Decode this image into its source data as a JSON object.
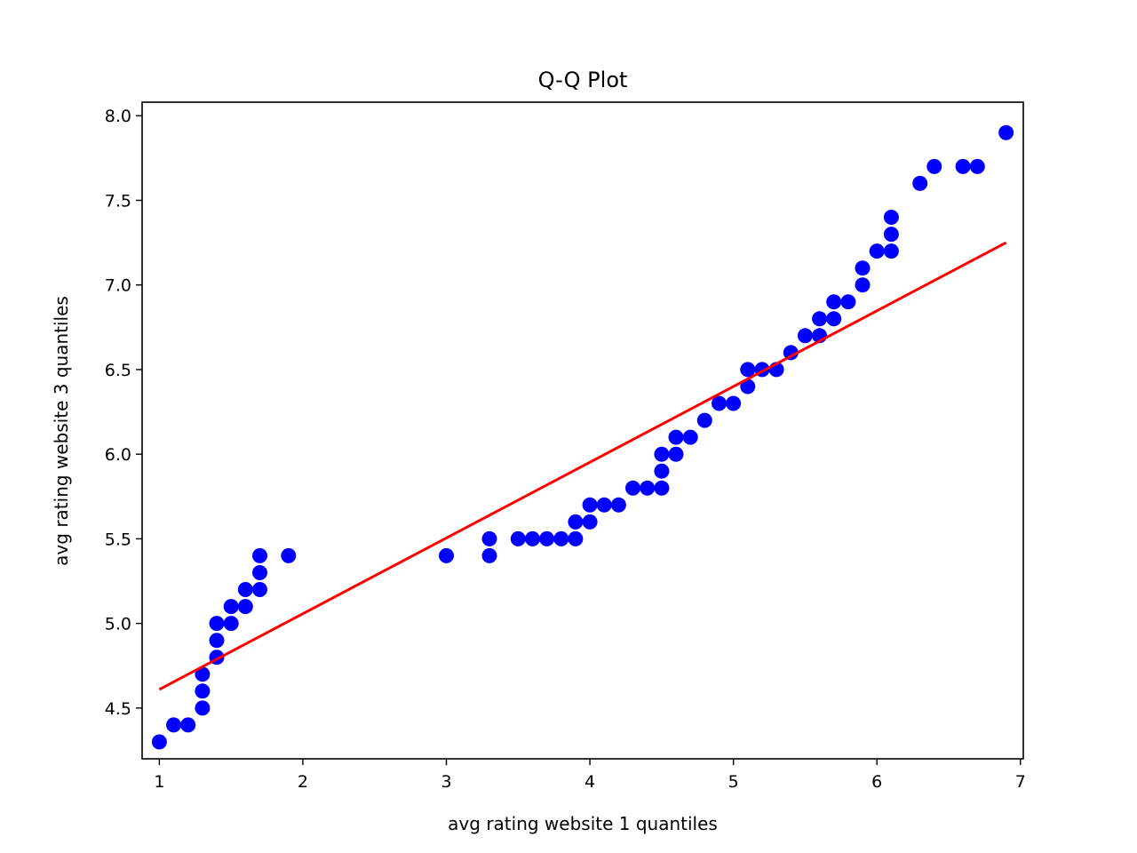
{
  "chart_data": {
    "type": "scatter",
    "title": "Q-Q Plot",
    "xlabel": "avg rating website 1 quantiles",
    "ylabel": "avg rating website 3 quantiles",
    "xlim": [
      0.88,
      7.02
    ],
    "ylim": [
      4.2,
      8.08
    ],
    "xticks": [
      1,
      2,
      3,
      4,
      5,
      6,
      7
    ],
    "xtick_labels": [
      "1",
      "2",
      "3",
      "4",
      "5",
      "6",
      "7"
    ],
    "yticks": [
      4.5,
      5.0,
      5.5,
      6.0,
      6.5,
      7.0,
      7.5,
      8.0
    ],
    "ytick_labels": [
      "4.5",
      "5.0",
      "5.5",
      "6.0",
      "6.5",
      "7.0",
      "7.5",
      "8.0"
    ],
    "grid": false,
    "colors": {
      "points": "#0000ff",
      "line": "#ff0000"
    },
    "series": [
      {
        "type": "scatter",
        "x": [
          1.0,
          1.1,
          1.2,
          1.3,
          1.3,
          1.3,
          1.4,
          1.4,
          1.4,
          1.5,
          1.5,
          1.6,
          1.6,
          1.7,
          1.7,
          1.7,
          1.9,
          3.0,
          3.3,
          3.3,
          3.5,
          3.6,
          3.7,
          3.8,
          3.9,
          3.9,
          4.0,
          4.0,
          4.1,
          4.2,
          4.3,
          4.4,
          4.5,
          4.5,
          4.5,
          4.6,
          4.6,
          4.7,
          4.8,
          4.9,
          5.0,
          5.1,
          5.1,
          5.2,
          5.3,
          5.4,
          5.5,
          5.6,
          5.6,
          5.7,
          5.7,
          5.8,
          5.9,
          5.9,
          6.0,
          6.1,
          6.1,
          6.1,
          6.3,
          6.4,
          6.6,
          6.7,
          6.9
        ],
        "y": [
          4.3,
          4.4,
          4.4,
          4.5,
          4.6,
          4.7,
          4.8,
          4.9,
          5.0,
          5.0,
          5.1,
          5.1,
          5.2,
          5.2,
          5.3,
          5.4,
          5.4,
          5.4,
          5.4,
          5.5,
          5.5,
          5.5,
          5.5,
          5.5,
          5.5,
          5.6,
          5.6,
          5.7,
          5.7,
          5.7,
          5.8,
          5.8,
          5.8,
          5.9,
          6.0,
          6.0,
          6.1,
          6.1,
          6.2,
          6.3,
          6.3,
          6.4,
          6.5,
          6.5,
          6.5,
          6.6,
          6.7,
          6.7,
          6.8,
          6.8,
          6.9,
          6.9,
          7.0,
          7.1,
          7.2,
          7.2,
          7.3,
          7.4,
          7.6,
          7.7,
          7.7,
          7.7,
          7.9
        ]
      },
      {
        "type": "line",
        "x": [
          1.0,
          6.9
        ],
        "y": [
          4.61,
          7.25
        ]
      }
    ]
  }
}
